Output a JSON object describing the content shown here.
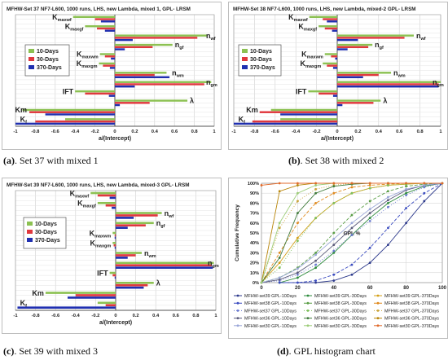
{
  "colors": {
    "d10": "#8cc152",
    "d30": "#e0383e",
    "d370": "#1f2fb0",
    "grid": "#cfcfcf",
    "axis": "#333333"
  },
  "panels": [
    {
      "caption_tag": "(a)",
      "caption_text": ". Set 37 with mixed 1",
      "chart_data": {
        "type": "bar",
        "orientation": "horizontal",
        "title": "MFHW-Set 37 NF7-L600, 1000 runs, LHS, new Lambda, mixed 1, GPL- LRSM",
        "xlabel": "a/(Intercept)",
        "xlim": [
          -1,
          1
        ],
        "xticks": [
          "-1",
          "-0.8",
          "-0.6",
          "-0.4",
          "-0.2",
          "0",
          "0.2",
          "0.4",
          "0.6",
          "0.8",
          "1"
        ],
        "grid": true,
        "legend_position": "left",
        "legend": [
          "10-Days",
          "30-Days",
          "370-Days"
        ],
        "params": [
          "Kmaxwf",
          "Kmaxgf",
          "nwf",
          "ngf",
          "Kmaxwm",
          "Kmaxgm",
          "nwm",
          "ngm",
          "IFT",
          "λ",
          "Km",
          "Kf"
        ],
        "label_main": [
          "K",
          "K",
          "n",
          "n",
          "K",
          "K",
          "n",
          "n",
          "IFT",
          "λ",
          "Km",
          "K"
        ],
        "label_sub": [
          "maxwf",
          "maxgf",
          "wf",
          "gf",
          "maxwm",
          "maxgm",
          "wm",
          "gm",
          "",
          "",
          "",
          "f"
        ],
        "label_side": [
          "left",
          "left",
          "right",
          "right",
          "left",
          "left",
          "right",
          "right",
          "left",
          "right",
          "left",
          "left"
        ],
        "series": [
          {
            "name": "10-Days",
            "values": [
              -0.42,
              -0.3,
              0.93,
              0.58,
              -0.15,
              -0.16,
              0.52,
              0.97,
              -0.4,
              0.73,
              -0.93,
              -0.5
            ]
          },
          {
            "name": "30-Days",
            "values": [
              -0.2,
              -0.18,
              0.83,
              0.38,
              -0.1,
              -0.12,
              0.4,
              0.9,
              -0.3,
              0.35,
              -0.86,
              -0.8
            ]
          },
          {
            "name": "370-Days",
            "values": [
              -0.14,
              -0.1,
              0.18,
              0.1,
              -0.04,
              -0.05,
              0.55,
              0.2,
              -0.06,
              0.05,
              -0.7,
              -1.0
            ]
          }
        ]
      }
    },
    {
      "caption_tag": "(b)",
      "caption_text": ". Set 38 with mixed 2",
      "chart_data": {
        "type": "bar",
        "orientation": "horizontal",
        "title": "MFHW-Set 38 NF7-L600, 1000 runs, LHS, new Lambda, mixed-2 GPL- LRSM",
        "xlabel": "a/(Intercept)",
        "xlim": [
          -1,
          1
        ],
        "xticks": [
          "-1",
          "-0.8",
          "-0.6",
          "-0.4",
          "-0.2",
          "0",
          "0.2",
          "0.4",
          "0.6",
          "0.8",
          "1"
        ],
        "grid": true,
        "legend_position": "left",
        "legend": [
          "10-Days",
          "30-Days",
          "370-Days"
        ],
        "params": [
          "Kmaxwf",
          "Kmaxgf",
          "nwf",
          "ngf",
          "Kmaxwm",
          "Kmaxgm",
          "nwm",
          "ngm",
          "IFT",
          "λ",
          "Km",
          "Kf"
        ],
        "label_main": [
          "K",
          "K",
          "n",
          "n",
          "K",
          "K",
          "n",
          "n",
          "IFT",
          "λ",
          "Km",
          "K"
        ],
        "label_sub": [
          "maxwf",
          "maxgf",
          "wf",
          "gf",
          "maxwm",
          "maxgm",
          "wm",
          "gm",
          "",
          "",
          "",
          "f"
        ],
        "label_side": [
          "left",
          "left",
          "right",
          "right",
          "left",
          "left",
          "right",
          "right",
          "left",
          "right",
          "left",
          "left"
        ],
        "series": [
          {
            "name": "10-Days",
            "values": [
              -0.27,
              -0.18,
              0.74,
              0.34,
              -0.12,
              -0.14,
              0.52,
              1.0,
              -0.28,
              0.42,
              -0.64,
              -0.55
            ]
          },
          {
            "name": "30-Days",
            "values": [
              -0.14,
              -0.12,
              0.65,
              0.3,
              -0.06,
              -0.1,
              0.4,
              0.98,
              -0.18,
              0.35,
              -0.75,
              -0.82
            ]
          },
          {
            "name": "370-Days",
            "values": [
              -0.1,
              -0.05,
              0.2,
              0.1,
              -0.02,
              -0.04,
              0.25,
              0.98,
              -0.04,
              0.05,
              -0.55,
              -1.0
            ]
          }
        ]
      }
    },
    {
      "caption_tag": "(c)",
      "caption_text": ". Set 39 with mixed 3",
      "chart_data": {
        "type": "bar",
        "orientation": "horizontal",
        "title": "MFHW-Set 39 NF7-L600, 1000 runs, LHS, new Lambda, mixed-3 GPL- LRSM",
        "xlabel": "a/(Intercept)",
        "xlim": [
          -1,
          1
        ],
        "xticks": [
          "-1",
          "-0.8",
          "-0.6",
          "-0.4",
          "-0.2",
          "0",
          "0.2",
          "0.4",
          "0.6",
          "0.8",
          "1"
        ],
        "grid": true,
        "legend_position": "left",
        "legend": [
          "10-Days",
          "30-Days",
          "370-Days"
        ],
        "params": [
          "Kmaxwf",
          "Kmaxgf",
          "nwf",
          "ngf",
          "Kmaxwm",
          "Kmaxgm",
          "nwm",
          "ngm",
          "IFT",
          "λ",
          "Km",
          "Kf"
        ],
        "label_main": [
          "K",
          "K",
          "n",
          "n",
          "K",
          "K",
          "n",
          "n",
          "IFT",
          "λ",
          "Km",
          "K"
        ],
        "label_sub": [
          "maxwf",
          "maxgf",
          "wf",
          "gf",
          "maxwm",
          "maxgm",
          "wm",
          "gm",
          "",
          "",
          "",
          "f"
        ],
        "label_side": [
          "left",
          "left",
          "right",
          "right",
          "left",
          "left",
          "right",
          "right",
          "left",
          "right",
          "left",
          "left"
        ],
        "series": [
          {
            "name": "10-Days",
            "values": [
              -0.25,
              -0.18,
              0.46,
              0.38,
              -0.03,
              -0.03,
              0.26,
              0.98,
              -0.06,
              0.38,
              -0.7,
              -0.18
            ]
          },
          {
            "name": "30-Days",
            "values": [
              -0.18,
              -0.1,
              0.42,
              0.3,
              -0.01,
              -0.02,
              0.2,
              0.96,
              -0.03,
              0.32,
              -0.4,
              -0.1
            ]
          },
          {
            "name": "370-Days",
            "values": [
              -0.06,
              -0.04,
              0.18,
              0.12,
              -0.01,
              -0.01,
              0.12,
              0.97,
              -0.01,
              0.28,
              -0.48,
              -0.98
            ]
          }
        ]
      }
    },
    {
      "caption_tag": "(d)",
      "caption_text": ". GPL histogram chart",
      "chart_data": {
        "type": "line",
        "xlabel": "GPL %",
        "ylabel": "Cumulative Frequency",
        "xlim": [
          0,
          100
        ],
        "ylim": [
          0,
          100
        ],
        "xticks": [
          "0",
          "20",
          "40",
          "60",
          "80",
          "100"
        ],
        "yticks": [
          "0%",
          "10%",
          "20%",
          "30%",
          "40%",
          "50%",
          "60%",
          "70%",
          "80%",
          "90%",
          "100%"
        ],
        "grid": true,
        "legend_position": "bottom",
        "series": [
          {
            "name": "MFHW-set39 GPL-10Days",
            "color": "#2d3a8c",
            "dash": "",
            "x": [
              10,
              20,
              30,
              40,
              50,
              60,
              70,
              80,
              90,
              100
            ],
            "y": [
              0,
              0,
              0,
              2,
              8,
              20,
              38,
              60,
              82,
              100
            ]
          },
          {
            "name": "MFHW-set39 GPL-30Days",
            "color": "#2e8b3d",
            "dash": "",
            "x": [
              10,
              20,
              30,
              40,
              50,
              60,
              70,
              80,
              90,
              100
            ],
            "y": [
              0,
              5,
              15,
              30,
              48,
              65,
              80,
              90,
              97,
              100
            ]
          },
          {
            "name": "MFHW-set39 GPL-370Days",
            "color": "#d4a017",
            "dash": "",
            "x": [
              0,
              10,
              20,
              30,
              40,
              50,
              60,
              70,
              80,
              90,
              100
            ],
            "y": [
              0,
              20,
              45,
              65,
              80,
              90,
              95,
              98,
              99,
              100,
              100
            ]
          },
          {
            "name": "MFHW-set38 GPL-10Days",
            "color": "#3b4cc0",
            "dash": "4,2",
            "x": [
              10,
              20,
              30,
              40,
              50,
              60,
              70,
              80,
              90,
              100
            ],
            "y": [
              0,
              0,
              2,
              8,
              18,
              35,
              55,
              75,
              90,
              100
            ]
          },
          {
            "name": "MFHW-set38 GPL-30Days",
            "color": "#5a9e46",
            "dash": "4,2",
            "x": [
              0,
              10,
              20,
              30,
              40,
              50,
              60,
              70,
              80,
              90,
              100
            ],
            "y": [
              0,
              5,
              15,
              30,
              50,
              68,
              82,
              92,
              97,
              99,
              100
            ]
          },
          {
            "name": "MFHW-set38 GPL-370Days",
            "color": "#e08a1e",
            "dash": "4,2",
            "x": [
              0,
              10,
              20,
              30,
              40,
              50,
              60,
              70,
              80,
              90,
              100
            ],
            "y": [
              0,
              30,
              60,
              80,
              90,
              96,
              98,
              99,
              100,
              100,
              100
            ]
          },
          {
            "name": "MFHW-set37 GPL-10Days",
            "color": "#6b7bd0",
            "dash": "1,2",
            "x": [
              0,
              10,
              20,
              30,
              40,
              50,
              60,
              70,
              80,
              90,
              100
            ],
            "y": [
              0,
              2,
              8,
              18,
              32,
              48,
              62,
              76,
              88,
              96,
              100
            ]
          },
          {
            "name": "MFHW-set37 GPL-30Days",
            "color": "#7cbf5a",
            "dash": "1,2",
            "x": [
              0,
              10,
              20,
              30,
              40,
              50,
              60,
              70,
              80,
              90,
              100
            ],
            "y": [
              0,
              15,
              42,
              65,
              80,
              90,
              95,
              98,
              99,
              100,
              100
            ]
          },
          {
            "name": "MFHW-set37 GPL-370Days",
            "color": "#c9a43a",
            "dash": "1,2",
            "x": [
              0,
              10,
              20,
              30,
              40,
              50,
              60,
              70,
              80,
              90,
              100
            ],
            "y": [
              0,
              55,
              82,
              94,
              98,
              100,
              100,
              100,
              100,
              100,
              100
            ]
          },
          {
            "name": "MFHW-set36 GPL-10Days",
            "color": "#5a5a7a",
            "dash": "",
            "x": [
              0,
              10,
              20,
              30,
              40,
              50,
              60,
              70,
              80,
              90,
              100
            ],
            "y": [
              0,
              3,
              10,
              22,
              38,
              55,
              70,
              83,
              93,
              98,
              100
            ]
          },
          {
            "name": "MFHW-set36 GPL-30Days",
            "color": "#3f7a3a",
            "dash": "",
            "x": [
              0,
              10,
              20,
              30,
              40,
              50,
              60,
              70,
              80,
              90,
              100
            ],
            "y": [
              0,
              25,
              70,
              90,
              97,
              99,
              100,
              100,
              100,
              100,
              100
            ]
          },
          {
            "name": "MFHW-set36 GPL-370Days",
            "color": "#b8860b",
            "dash": "",
            "x": [
              0,
              10,
              20,
              30,
              40,
              50,
              60,
              70,
              80,
              90,
              100
            ],
            "y": [
              0,
              92,
              98,
              100,
              100,
              100,
              100,
              100,
              100,
              100,
              100
            ]
          },
          {
            "name": "MFHW-set30 GPL-10Days",
            "color": "#9aa6d8",
            "dash": "",
            "x": [
              0,
              10,
              20,
              30,
              40,
              50,
              60,
              70,
              80,
              90,
              100
            ],
            "y": [
              0,
              5,
              14,
              28,
              44,
              60,
              74,
              86,
              94,
              98,
              100
            ]
          },
          {
            "name": "MFHW-set30 GPL-30Days",
            "color": "#9ccc78",
            "dash": "",
            "x": [
              0,
              10,
              20,
              30,
              40,
              50,
              60,
              70,
              80,
              90,
              100
            ],
            "y": [
              0,
              60,
              90,
              98,
              100,
              100,
              100,
              100,
              100,
              100,
              100
            ]
          },
          {
            "name": "MFHW-set30 GPL-370Days",
            "color": "#e06a2b",
            "dash": "",
            "x": [
              0,
              10,
              20,
              30,
              40,
              50,
              60,
              70,
              80,
              90,
              100
            ],
            "y": [
              98,
              100,
              100,
              100,
              100,
              100,
              100,
              100,
              100,
              100,
              100
            ]
          }
        ]
      }
    }
  ]
}
